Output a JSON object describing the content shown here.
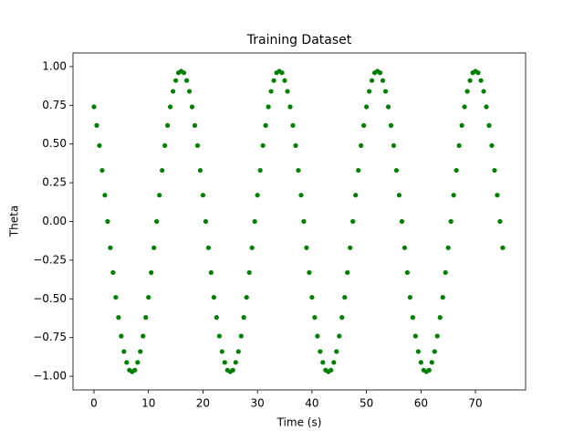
{
  "chart_data": {
    "type": "scatter",
    "title": "Training Dataset",
    "x_label": "Time (s)",
    "y_label": "Theta",
    "color": "#008000",
    "x": [
      0,
      0.5,
      1,
      1.5,
      2,
      2.5,
      3,
      3.5,
      4,
      4.5,
      5,
      5.5,
      6,
      6.5,
      7,
      7.5,
      8,
      8.5,
      9,
      9.5,
      10,
      10.5,
      11,
      11.5,
      12,
      12.5,
      13,
      13.5,
      14,
      14.5,
      15,
      15.5,
      16,
      16.5,
      17,
      17.5,
      18,
      18.5,
      19,
      19.5,
      20,
      20.5,
      21,
      21.5,
      22,
      22.5,
      23,
      23.5,
      24,
      24.5,
      25,
      25.5,
      26,
      26.5,
      27,
      27.5,
      28,
      28.5,
      29,
      29.5,
      30,
      30.5,
      31,
      31.5,
      32,
      32.5,
      33,
      33.5,
      34,
      34.5,
      35,
      35.5,
      36,
      36.5,
      37,
      37.5,
      38,
      38.5,
      39,
      39.5,
      40,
      40.5,
      41,
      41.5,
      42,
      42.5,
      43,
      43.5,
      44,
      44.5,
      45,
      45.5,
      46,
      46.5,
      47,
      47.5,
      48,
      48.5,
      49,
      49.5,
      50,
      50.5,
      51,
      51.5,
      52,
      52.5,
      53,
      53.5,
      54,
      54.5,
      55,
      55.5,
      56,
      56.5,
      57,
      57.5,
      58,
      58.5,
      59,
      59.5,
      60,
      60.5,
      61,
      61.5,
      62,
      62.5,
      63,
      63.5,
      64,
      64.5,
      65,
      65.5,
      66,
      66.5,
      67,
      67.5,
      68,
      68.5,
      69,
      69.5,
      70,
      70.5,
      71,
      71.5,
      72,
      72.5,
      73,
      73.5,
      74,
      74.5,
      75
    ],
    "values": [
      0.74,
      0.62,
      0.49,
      0.33,
      0.17,
      0,
      -0.17,
      -0.33,
      -0.49,
      -0.62,
      -0.74,
      -0.84,
      -0.91,
      -0.96,
      -0.97,
      -0.96,
      -0.91,
      -0.84,
      -0.74,
      -0.62,
      -0.49,
      -0.33,
      -0.17,
      0,
      0.17,
      0.33,
      0.49,
      0.62,
      0.74,
      0.84,
      0.91,
      0.96,
      0.97,
      0.96,
      0.91,
      0.84,
      0.74,
      0.62,
      0.49,
      0.33,
      0.17,
      0,
      -0.17,
      -0.33,
      -0.49,
      -0.62,
      -0.74,
      -0.84,
      -0.91,
      -0.96,
      -0.97,
      -0.96,
      -0.91,
      -0.84,
      -0.74,
      -0.62,
      -0.49,
      -0.33,
      -0.17,
      0,
      0.17,
      0.33,
      0.49,
      0.62,
      0.74,
      0.84,
      0.91,
      0.96,
      0.97,
      0.96,
      0.91,
      0.84,
      0.74,
      0.62,
      0.49,
      0.33,
      0.17,
      0,
      -0.17,
      -0.33,
      -0.49,
      -0.62,
      -0.74,
      -0.84,
      -0.91,
      -0.96,
      -0.97,
      -0.96,
      -0.91,
      -0.84,
      -0.74,
      -0.62,
      -0.49,
      -0.33,
      -0.17,
      0,
      0.17,
      0.33,
      0.49,
      0.62,
      0.74,
      0.84,
      0.91,
      0.96,
      0.97,
      0.96,
      0.91,
      0.84,
      0.74,
      0.62,
      0.49,
      0.33,
      0.17,
      0,
      -0.17,
      -0.33,
      -0.49,
      -0.62,
      -0.74,
      -0.84,
      -0.91,
      -0.96,
      -0.97,
      -0.96,
      -0.91,
      -0.84,
      -0.74,
      -0.62,
      -0.49,
      -0.33,
      -0.17,
      0,
      0.17,
      0.33,
      0.49,
      0.62,
      0.74,
      0.84,
      0.91,
      0.96,
      0.97,
      0.96,
      0.91,
      0.84,
      0.74,
      0.62,
      0.49,
      0.33,
      0.17,
      0,
      -0.17
    ],
    "xlim": [
      -3.85,
      79.2
    ],
    "ylim": [
      -1.088,
      1.088
    ],
    "xticks": [
      0,
      10,
      20,
      30,
      40,
      50,
      60,
      70
    ],
    "yticks": [
      {
        "value": -1,
        "label": "−1.00"
      },
      {
        "value": -0.75,
        "label": "−0.75"
      },
      {
        "value": -0.5,
        "label": "−0.50"
      },
      {
        "value": -0.25,
        "label": "−0.25"
      },
      {
        "value": 0,
        "label": "0.00"
      },
      {
        "value": 0.25,
        "label": "0.25"
      },
      {
        "value": 0.5,
        "label": "0.50"
      },
      {
        "value": 0.75,
        "label": "0.75"
      },
      {
        "value": 1,
        "label": "1.00"
      }
    ]
  }
}
